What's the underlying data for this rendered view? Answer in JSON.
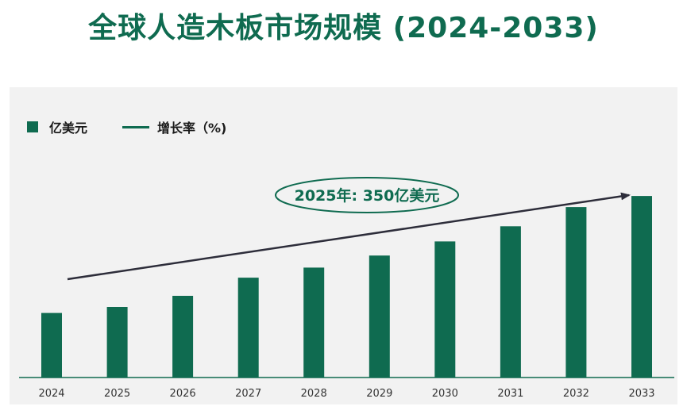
{
  "title": "全球人造木板市场规模 (2024-2033)",
  "colors": {
    "bar": "#0f6b50",
    "trend_arrow": "#2d2d3a",
    "annotation_border": "#0f6b50",
    "panel_bg": "#f2f2f2",
    "title": "#0f6b50"
  },
  "legend": {
    "bar_label": "亿美元",
    "line_label": "增长率（%)"
  },
  "annotation": {
    "text": "2025年: 350亿美元"
  },
  "chart_data": {
    "type": "bar",
    "categories": [
      "2024",
      "2025",
      "2026",
      "2027",
      "2028",
      "2029",
      "2030",
      "2031",
      "2032",
      "2033"
    ],
    "series": [
      {
        "name": "亿美元",
        "values": [
          320,
          350,
          405,
          495,
          545,
          605,
          675,
          750,
          845,
          900
        ]
      }
    ],
    "ylim": [
      0,
      1400
    ],
    "grid": false,
    "legend_position": "top-left",
    "trend_arrow": true
  }
}
